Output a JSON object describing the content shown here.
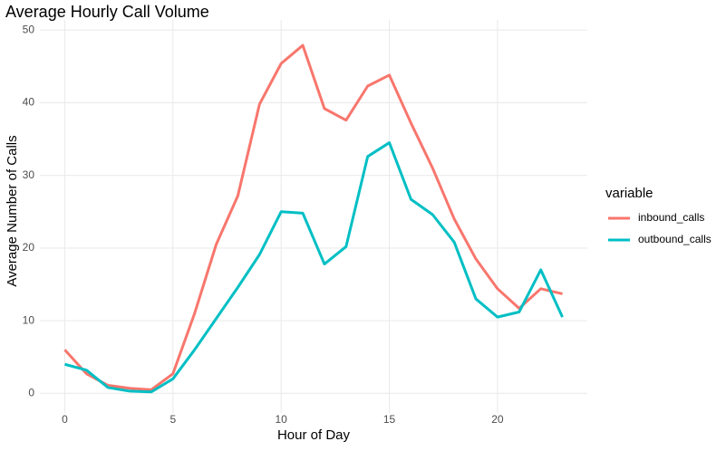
{
  "chart_data": {
    "type": "line",
    "title": "Average Hourly Call Volume",
    "x_label": "Hour of Day",
    "y_label": "Average Number of Calls",
    "legend_title": "variable",
    "legend_position": "right",
    "x": [
      0,
      1,
      2,
      3,
      4,
      5,
      6,
      7,
      8,
      9,
      10,
      11,
      12,
      13,
      14,
      15,
      16,
      17,
      18,
      19,
      20,
      21,
      22,
      23
    ],
    "series": [
      {
        "name": "inbound_calls",
        "color": "#f8766d",
        "values": [
          6.0,
          2.7,
          1.1,
          0.7,
          0.5,
          2.7,
          11.0,
          20.5,
          27.2,
          39.8,
          45.4,
          47.9,
          39.2,
          37.6,
          42.3,
          43.8,
          37.2,
          31.0,
          24.0,
          18.5,
          14.4,
          11.7,
          14.4,
          13.7
        ]
      },
      {
        "name": "outbound_calls",
        "color": "#00bfc4",
        "values": [
          4.0,
          3.2,
          0.8,
          0.3,
          0.2,
          2.0,
          6.0,
          10.3,
          14.6,
          19.1,
          25.0,
          24.8,
          17.8,
          20.2,
          32.6,
          34.5,
          26.7,
          24.6,
          20.8,
          13.0,
          10.5,
          11.2,
          17.0,
          10.5
        ]
      }
    ],
    "xlim": [
      -1.15,
      24.15
    ],
    "xticks": [
      0,
      5,
      10,
      15,
      20
    ],
    "ylim": [
      -2.7,
      51.4
    ],
    "yticks": [
      0,
      10,
      20,
      30,
      40,
      50
    ],
    "grid": true
  }
}
